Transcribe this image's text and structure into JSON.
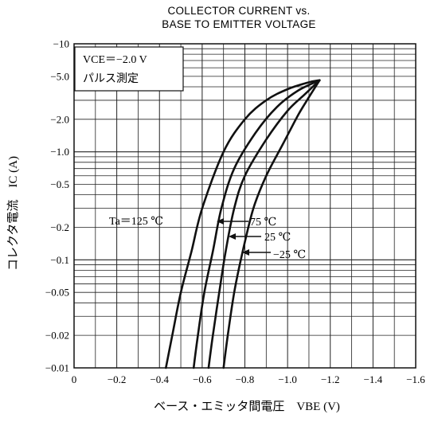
{
  "chart_data": {
    "type": "line",
    "title_lines": [
      "COLLECTOR CURRENT vs.",
      "BASE TO EMITTER VOLTAGE"
    ],
    "xlabel": "ベース・エミッタ間電圧　VBE (V)",
    "ylabel": "コレクタ電流　IC (A)",
    "x_scale": "linear",
    "y_scale": "log",
    "xlim": [
      0,
      -1.6
    ],
    "ylim": [
      -0.01,
      -10
    ],
    "x_ticks": [
      {
        "value": 0,
        "label": "0"
      },
      {
        "value": -0.2,
        "label": "−0.2"
      },
      {
        "value": -0.4,
        "label": "−0.4"
      },
      {
        "value": -0.6,
        "label": "−0.6"
      },
      {
        "value": -0.8,
        "label": "−0.8"
      },
      {
        "value": -1.0,
        "label": "−1.0"
      },
      {
        "value": -1.2,
        "label": "−1.2"
      },
      {
        "value": -1.4,
        "label": "−1.4"
      },
      {
        "value": -1.6,
        "label": "−1.6"
      }
    ],
    "y_ticks": [
      {
        "value": -10,
        "label": "−10"
      },
      {
        "value": -5,
        "label": "−5.0"
      },
      {
        "value": -2,
        "label": "−2.0"
      },
      {
        "value": -1,
        "label": "−1.0"
      },
      {
        "value": -0.5,
        "label": "−0.5"
      },
      {
        "value": -0.2,
        "label": "−0.2"
      },
      {
        "value": -0.1,
        "label": "−0.1"
      },
      {
        "value": -0.05,
        "label": "−0.05"
      },
      {
        "value": -0.02,
        "label": "−0.02"
      },
      {
        "value": -0.01,
        "label": "−0.01"
      }
    ],
    "conditions": [
      "VCE＝−2.0 V",
      "パルス測定"
    ],
    "grid": true,
    "series": [
      {
        "name": "Ta＝125 ℃",
        "x": [
          -0.43,
          -0.46,
          -0.5,
          -0.55,
          -0.6,
          -0.7,
          -0.8,
          -0.9,
          -1.0,
          -1.1,
          -1.15
        ],
        "y": [
          -0.01,
          -0.02,
          -0.05,
          -0.12,
          -0.3,
          -1.0,
          -2.0,
          -3.0,
          -3.8,
          -4.4,
          -4.6
        ]
      },
      {
        "name": "75 ℃",
        "x": [
          -0.56,
          -0.58,
          -0.61,
          -0.65,
          -0.69,
          -0.75,
          -0.85,
          -0.95,
          -1.05,
          -1.15
        ],
        "y": [
          -0.01,
          -0.02,
          -0.05,
          -0.12,
          -0.3,
          -0.7,
          -1.5,
          -2.6,
          -3.7,
          -4.6
        ]
      },
      {
        "name": "25 ℃",
        "x": [
          -0.63,
          -0.65,
          -0.68,
          -0.71,
          -0.75,
          -0.8,
          -0.9,
          -1.0,
          -1.08,
          -1.15
        ],
        "y": [
          -0.01,
          -0.02,
          -0.05,
          -0.12,
          -0.3,
          -0.6,
          -1.3,
          -2.4,
          -3.4,
          -4.6
        ]
      },
      {
        "name": "−25 ℃",
        "x": [
          -0.7,
          -0.72,
          -0.75,
          -0.79,
          -0.84,
          -0.9,
          -0.98,
          -1.05,
          -1.1,
          -1.15
        ],
        "y": [
          -0.01,
          -0.02,
          -0.05,
          -0.12,
          -0.3,
          -0.6,
          -1.2,
          -2.2,
          -3.2,
          -4.6
        ]
      }
    ]
  }
}
